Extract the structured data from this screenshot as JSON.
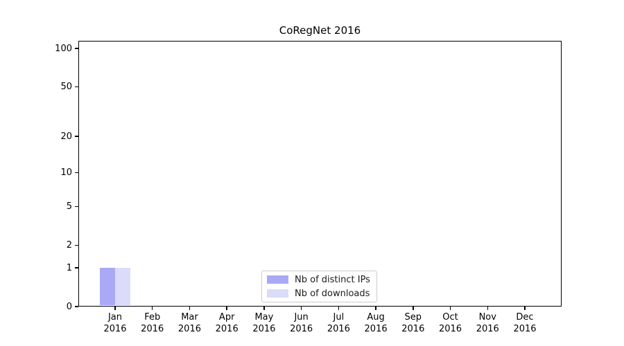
{
  "chart_data": {
    "type": "bar",
    "title": "CoRegNet 2016",
    "xlabel": "",
    "ylabel": "",
    "yscale": "log1p",
    "ylim": [
      0,
      115
    ],
    "grid": true,
    "categories": [
      "Jan",
      "Feb",
      "Mar",
      "Apr",
      "May",
      "Jun",
      "Jul",
      "Aug",
      "Sep",
      "Oct",
      "Nov",
      "Dec"
    ],
    "xtick_year": "2016",
    "yticks": [
      0,
      1,
      2,
      5,
      10,
      20,
      50,
      100
    ],
    "major_gridlines": [
      1,
      10,
      100
    ],
    "minor_gridlines": [
      2,
      3,
      4,
      5,
      6,
      7,
      8,
      9,
      20,
      30,
      40,
      50,
      60,
      70,
      80,
      90
    ],
    "legend_position": "bottom-center",
    "series": [
      {
        "name": "Nb of distinct IPs",
        "color": "#a9a9f5",
        "values": [
          1,
          0,
          0,
          0,
          0,
          0,
          0,
          0,
          0,
          0,
          0,
          0
        ]
      },
      {
        "name": "Nb of downloads",
        "color": "#dbdbfa",
        "values": [
          1,
          0,
          0,
          0,
          0,
          0,
          0,
          0,
          0,
          0,
          0,
          0
        ]
      }
    ]
  }
}
